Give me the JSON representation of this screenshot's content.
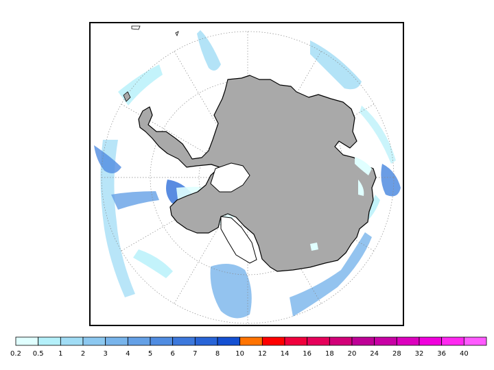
{
  "map": {
    "projection": "south-polar-stereographic",
    "graticule": "dotted",
    "land_color": "#a9a9a9",
    "ocean_color": "#ffffff",
    "coastline_color": "#000000"
  },
  "colorbar": {
    "ticks": [
      "0.2",
      "0.5",
      "1",
      "2",
      "3",
      "4",
      "5",
      "6",
      "7",
      "8",
      "10",
      "12",
      "14",
      "16",
      "18",
      "20",
      "24",
      "28",
      "32",
      "36",
      "40"
    ],
    "colors": [
      "#e0ffff",
      "#b4f0fa",
      "#a0dcf5",
      "#8cc8f0",
      "#78b4eb",
      "#64a0e6",
      "#508ce1",
      "#3c78dc",
      "#2864d7",
      "#1450d2",
      "#ff7300",
      "#ff0000",
      "#f0003c",
      "#e6005a",
      "#d20078",
      "#be0096",
      "#c800a5",
      "#dc00be",
      "#f000dc",
      "#ff28f0",
      "#ff5aff"
    ]
  }
}
